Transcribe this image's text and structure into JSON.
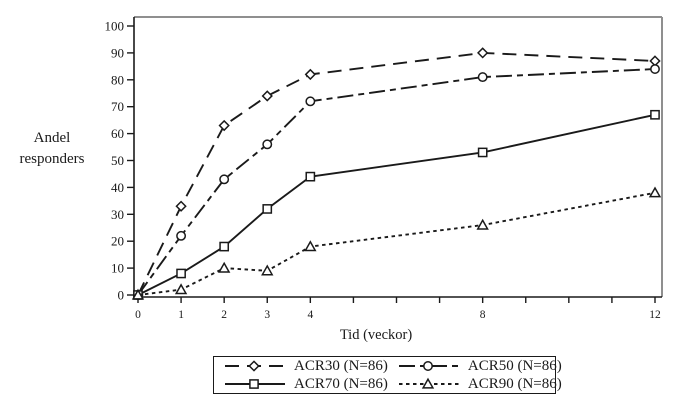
{
  "figure": {
    "background": "#ffffff",
    "frame_color": "#8f8f8f",
    "axis_color": "#1a1a1a",
    "series_color": "#1a1a1a"
  },
  "chart_data": {
    "type": "line",
    "title": "",
    "xlabel": "Tid (veckor)",
    "ylabel": "Andel responders",
    "x": [
      0,
      1,
      2,
      3,
      4,
      8,
      12
    ],
    "xlim": [
      0,
      12
    ],
    "ylim": [
      0,
      100
    ],
    "y_ticks": [
      0,
      10,
      20,
      30,
      40,
      50,
      60,
      70,
      80,
      90,
      100
    ],
    "x_minor_ticks": [
      0,
      1,
      2,
      3,
      4,
      5,
      6,
      7,
      8,
      9,
      10,
      11,
      12
    ],
    "x_labeled_ticks": [
      0,
      1,
      2,
      3,
      4,
      8,
      12
    ],
    "grid": false,
    "legend_position": "bottom-boxed",
    "series": [
      {
        "name": "ACR30 (N=86)",
        "marker": "diamond",
        "line_style": "long-dash",
        "color": "#1a1a1a",
        "values": [
          0,
          33,
          63,
          74,
          82,
          90,
          87
        ]
      },
      {
        "name": "ACR50 (N=86)",
        "marker": "circle",
        "line_style": "dash-dot",
        "color": "#1a1a1a",
        "values": [
          0,
          22,
          43,
          56,
          72,
          81,
          84
        ]
      },
      {
        "name": "ACR70 (N=86)",
        "marker": "square",
        "line_style": "solid",
        "color": "#1a1a1a",
        "values": [
          0,
          8,
          18,
          32,
          44,
          53,
          67
        ]
      },
      {
        "name": "ACR90 (N=86)",
        "marker": "triangle",
        "line_style": "dotted",
        "color": "#1a1a1a",
        "values": [
          0,
          2,
          10,
          9,
          18,
          26,
          38
        ]
      }
    ]
  }
}
